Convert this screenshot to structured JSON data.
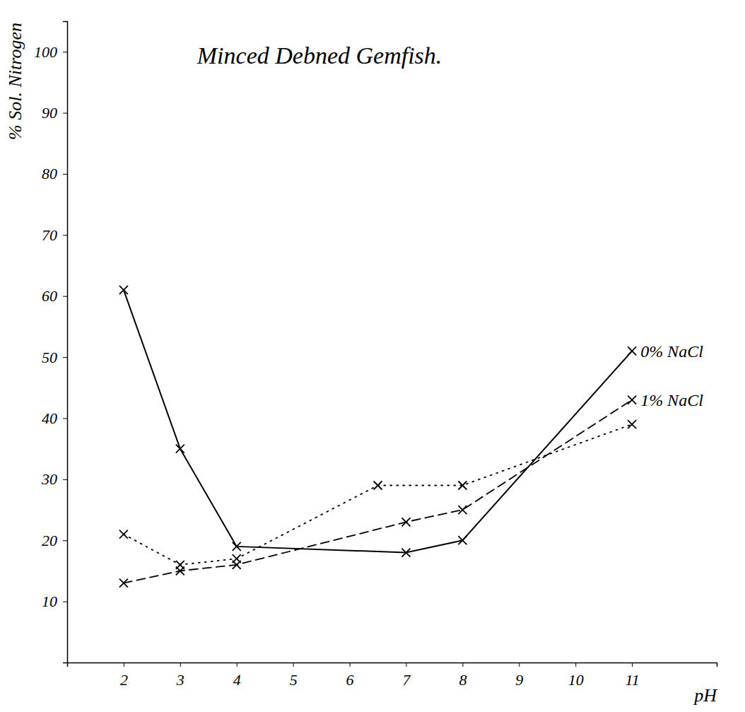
{
  "chart_data": {
    "type": "line",
    "title": "Minced Debned Gemfish.",
    "x_label": "pH",
    "y_label": "% Sol. Nitrogen",
    "xlim": [
      1,
      12.5
    ],
    "xticks": [
      2,
      3,
      4,
      5,
      6,
      7,
      8,
      9,
      10,
      11
    ],
    "ylim": [
      0,
      105
    ],
    "yticks": [
      10,
      20,
      30,
      40,
      50,
      60,
      70,
      80,
      90,
      100
    ],
    "grid": false,
    "series": [
      {
        "name": "0% NaCl",
        "color": "#000000",
        "line_style": "solid",
        "marker": "x",
        "x": [
          2,
          3,
          4,
          7,
          8,
          11
        ],
        "values": [
          61,
          35,
          19,
          18,
          20,
          51
        ]
      },
      {
        "name": "1% NaCl",
        "color": "#000000",
        "line_style": "dashed",
        "marker": "x",
        "x": [
          2,
          3,
          4,
          7,
          8,
          11
        ],
        "values": [
          13,
          15,
          16,
          23,
          25,
          43
        ]
      },
      {
        "color": "#000000",
        "line_style": "dotted",
        "marker": "x",
        "x": [
          2,
          3,
          4,
          6.5,
          8,
          11
        ],
        "values": [
          21,
          16,
          17,
          29,
          29,
          39
        ]
      }
    ]
  }
}
